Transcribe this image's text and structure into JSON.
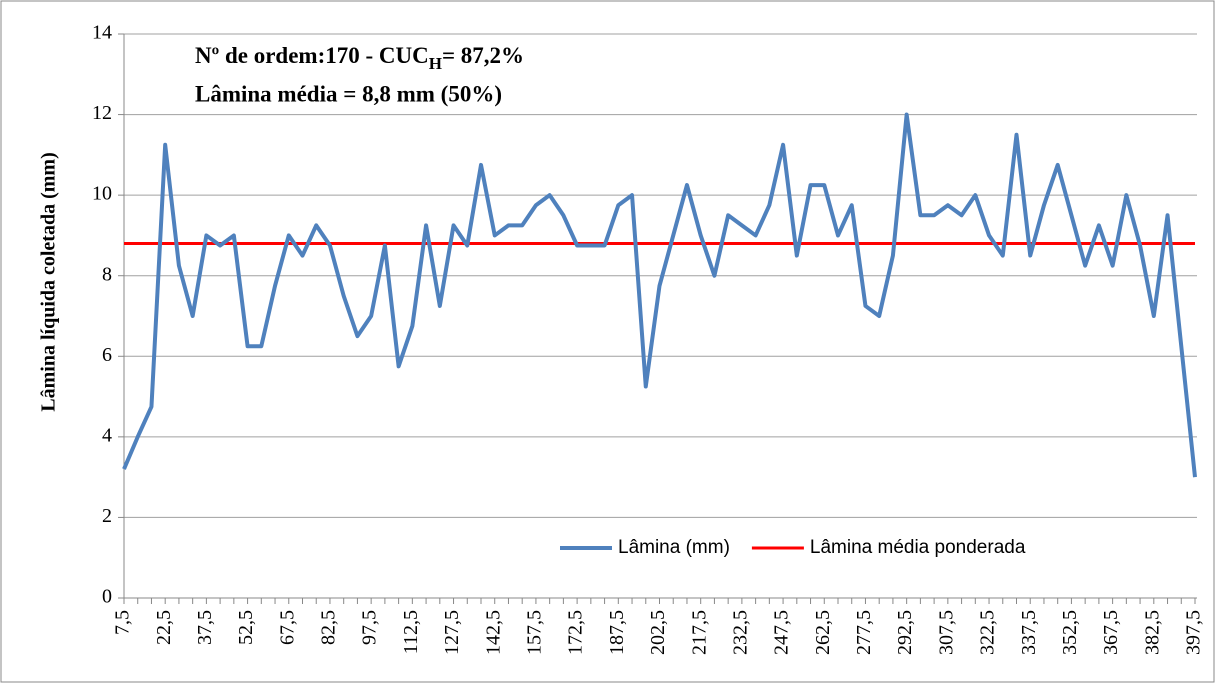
{
  "chart_data": {
    "type": "line",
    "y_label": "Lâmina líquida  coletada (mm)",
    "annotations": [
      {
        "text": "Nº de ordem:170 -  CUC",
        "sub": "H",
        "after": "=  87,2%"
      },
      {
        "text": "Lâmina média = 8,8 mm (50%)"
      }
    ],
    "categories": [
      "7,5",
      null,
      null,
      "22,5",
      null,
      null,
      "37,5",
      null,
      null,
      "52,5",
      null,
      null,
      "67,5",
      null,
      null,
      "82,5",
      null,
      null,
      "97,5",
      null,
      null,
      "112,5",
      null,
      null,
      "127,5",
      null,
      null,
      "142,5",
      null,
      null,
      "157,5",
      null,
      null,
      "172,5",
      null,
      null,
      "187,5",
      null,
      null,
      "202,5",
      null,
      null,
      "217,5",
      null,
      null,
      "232,5",
      null,
      null,
      "247,5",
      null,
      null,
      "262,5",
      null,
      null,
      "277,5",
      null,
      null,
      "292,5",
      null,
      null,
      "307,5",
      null,
      null,
      "322,5",
      null,
      null,
      "337,5",
      null,
      null,
      "352,5",
      null,
      null,
      "367,5",
      null,
      null,
      "382,5",
      null,
      null,
      "397,5"
    ],
    "series": [
      {
        "name": "Lâmina (mm)",
        "color": "#4f81bd",
        "values": [
          3.2,
          4.0,
          4.75,
          11.25,
          8.25,
          7.0,
          9.0,
          8.75,
          9.0,
          6.25,
          6.25,
          7.75,
          9.0,
          8.5,
          9.25,
          8.75,
          7.5,
          6.5,
          7.0,
          8.75,
          5.75,
          6.75,
          9.25,
          7.25,
          9.25,
          8.75,
          10.75,
          9.0,
          9.25,
          9.25,
          9.75,
          10.0,
          9.5,
          8.75,
          8.75,
          8.75,
          9.75,
          10.0,
          5.25,
          7.75,
          9.0,
          10.25,
          9.0,
          8.0,
          9.5,
          9.25,
          9.0,
          9.75,
          11.25,
          8.5,
          10.25,
          10.25,
          9.0,
          9.75,
          7.25,
          7.0,
          8.5,
          12.0,
          9.5,
          9.5,
          9.75,
          9.5,
          10.0,
          9.0,
          8.5,
          11.5,
          8.5,
          9.75,
          10.75,
          9.5,
          8.25,
          9.25,
          8.25,
          10.0,
          8.75,
          7.0,
          9.5,
          6.25,
          3.0
        ]
      },
      {
        "name": "Lâmina média ponderada",
        "color": "#ff0000",
        "values": [
          8.8,
          8.8,
          8.8,
          8.8,
          8.8,
          8.8,
          8.8,
          8.8,
          8.8,
          8.8,
          8.8,
          8.8,
          8.8,
          8.8,
          8.8,
          8.8,
          8.8,
          8.8,
          8.8,
          8.8,
          8.8,
          8.8,
          8.8,
          8.8,
          8.8,
          8.8,
          8.8,
          8.8,
          8.8,
          8.8,
          8.8,
          8.8,
          8.8,
          8.8,
          8.8,
          8.8,
          8.8,
          8.8,
          8.8,
          8.8,
          8.8,
          8.8,
          8.8,
          8.8,
          8.8,
          8.8,
          8.8,
          8.8,
          8.8,
          8.8,
          8.8,
          8.8,
          8.8,
          8.8,
          8.8,
          8.8,
          8.8,
          8.8,
          8.8,
          8.8,
          8.8,
          8.8,
          8.8,
          8.8,
          8.8,
          8.8,
          8.8,
          8.8,
          8.8,
          8.8,
          8.8,
          8.8,
          8.8,
          8.8,
          8.8,
          8.8,
          8.8,
          8.8,
          8.8
        ]
      }
    ],
    "ylim": [
      0,
      14
    ],
    "yticks": [
      0,
      2,
      4,
      6,
      8,
      10,
      12,
      14
    ],
    "grid": true,
    "legend": "bottom-right"
  }
}
